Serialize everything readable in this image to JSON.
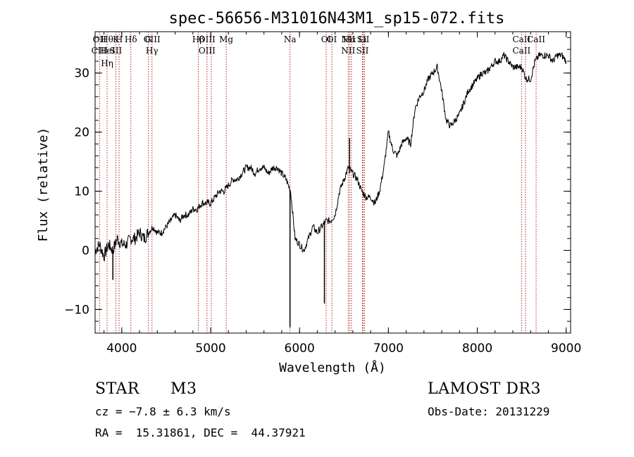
{
  "chart_data": {
    "type": "line",
    "title": "spec-56656-M31016N43M1_sp15-072.fits",
    "xlabel": "Wavelength (Å)",
    "ylabel": "Flux (relative)",
    "xlim": [
      3700,
      9050
    ],
    "ylim": [
      -14,
      37
    ],
    "xticks": [
      4000,
      5000,
      6000,
      7000,
      8000,
      9000
    ],
    "xtick_labels": [
      "4000",
      "5000",
      "6000",
      "7000",
      "8000",
      "9000"
    ],
    "yticks": [
      -10,
      0,
      10,
      20,
      30
    ],
    "ytick_labels": [
      "−10",
      "0",
      "10",
      "20",
      "30"
    ],
    "spectrum": {
      "name": "flux",
      "x": [
        3700,
        3750,
        3800,
        3850,
        3900,
        3950,
        4000,
        4050,
        4100,
        4150,
        4200,
        4250,
        4300,
        4350,
        4400,
        4450,
        4500,
        4550,
        4600,
        4650,
        4700,
        4750,
        4800,
        4850,
        4900,
        4950,
        5000,
        5050,
        5100,
        5150,
        5200,
        5250,
        5300,
        5350,
        5400,
        5450,
        5500,
        5550,
        5600,
        5650,
        5700,
        5750,
        5800,
        5850,
        5900,
        5950,
        6000,
        6050,
        6100,
        6150,
        6200,
        6250,
        6300,
        6350,
        6400,
        6450,
        6500,
        6550,
        6600,
        6650,
        6700,
        6750,
        6800,
        6850,
        6900,
        6950,
        7000,
        7050,
        7100,
        7150,
        7200,
        7250,
        7300,
        7350,
        7400,
        7450,
        7500,
        7550,
        7600,
        7650,
        7700,
        7750,
        7800,
        7850,
        7900,
        7950,
        8000,
        8050,
        8100,
        8150,
        8200,
        8250,
        8300,
        8350,
        8400,
        8450,
        8500,
        8550,
        8600,
        8650,
        8700,
        8750,
        8800,
        8850,
        8900,
        8950,
        9000
      ],
      "y": [
        0,
        1,
        -1,
        1,
        0,
        2,
        1,
        1,
        2,
        2,
        3,
        2,
        3,
        4,
        3,
        3,
        4,
        5,
        6,
        5,
        6,
        6,
        7,
        7,
        8,
        8,
        8,
        9,
        10,
        10,
        11,
        12,
        12,
        13,
        14,
        14,
        13,
        14,
        14,
        13,
        14,
        14,
        13,
        12,
        10,
        2,
        1,
        0,
        2,
        4,
        3,
        4,
        5,
        5,
        6,
        10,
        12,
        14,
        13,
        12,
        10,
        9,
        9,
        8,
        10,
        14,
        20,
        17,
        16,
        18,
        19,
        18,
        24,
        26,
        27,
        29,
        30,
        31,
        27,
        22,
        21,
        22,
        23,
        25,
        27,
        28,
        29,
        30,
        30,
        31,
        32,
        32,
        33,
        32,
        31,
        31,
        31,
        29,
        29,
        32,
        33,
        33,
        33,
        32,
        33,
        33,
        32
      ]
    },
    "absorption_features": [
      {
        "x": 3900,
        "y": -5
      },
      {
        "x": 5893,
        "y": -13
      },
      {
        "x": 6280,
        "y": -9
      },
      {
        "x": 6563,
        "y": 19
      }
    ],
    "line_markers": [
      {
        "wavelength": 3750,
        "labels": [
          "OII",
          "CIII"
        ]
      },
      {
        "wavelength": 3835,
        "labels": [
          "Hθ",
          "HeI",
          "Hη"
        ]
      },
      {
        "wavelength": 3934,
        "labels": [
          "K",
          "SII"
        ]
      },
      {
        "wavelength": 3970,
        "labels": [
          "H"
        ]
      },
      {
        "wavelength": 4102,
        "labels": [
          "Hδ"
        ]
      },
      {
        "wavelength": 4300,
        "labels": [
          "G"
        ]
      },
      {
        "wavelength": 4340,
        "labels": [
          "OIII",
          "Hγ"
        ]
      },
      {
        "wavelength": 4861,
        "labels": [
          "Hβ"
        ]
      },
      {
        "wavelength": 4959,
        "labels": [
          "OIII",
          "OIII"
        ]
      },
      {
        "wavelength": 5007,
        "labels": []
      },
      {
        "wavelength": 5175,
        "labels": [
          "Mg"
        ]
      },
      {
        "wavelength": 5893,
        "labels": [
          "Na"
        ]
      },
      {
        "wavelength": 6300,
        "labels": [
          "OI"
        ]
      },
      {
        "wavelength": 6364,
        "labels": [
          "OI"
        ]
      },
      {
        "wavelength": 6548,
        "labels": [
          "NII",
          "NII"
        ]
      },
      {
        "wavelength": 6563,
        "labels": [
          "Hα"
        ]
      },
      {
        "wavelength": 6584,
        "labels": []
      },
      {
        "wavelength": 6708,
        "labels": [
          "Li",
          "SII"
        ]
      },
      {
        "wavelength": 6716,
        "labels": [
          "SII"
        ]
      },
      {
        "wavelength": 6731,
        "labels": []
      },
      {
        "wavelength": 8498,
        "labels": [
          "CaII",
          "CaII"
        ]
      },
      {
        "wavelength": 8542,
        "labels": []
      },
      {
        "wavelength": 8662,
        "labels": [
          "CaII"
        ]
      }
    ]
  },
  "info": {
    "object_class": "STAR",
    "subclass": "M3",
    "cz": "cz = −7.8 ± 6.3 km/s",
    "coords": "RA =  15.31861, DEC =  44.37921",
    "survey": "LAMOST DR3",
    "obs_date": "Obs-Date: 20131229"
  }
}
